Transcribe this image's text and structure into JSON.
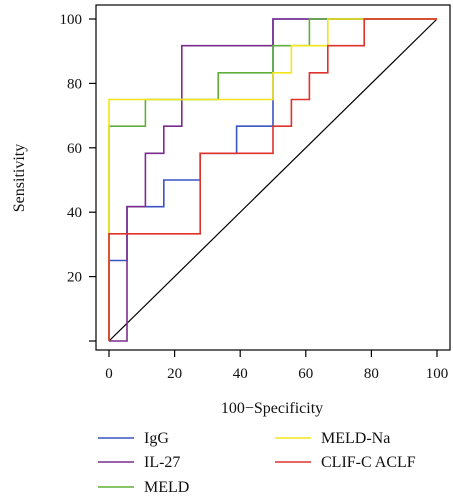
{
  "chart_data": {
    "type": "line",
    "title": "",
    "xlabel": "100−Specificity",
    "ylabel": "Sensitivity",
    "xlim": [
      0,
      100
    ],
    "ylim": [
      0,
      100
    ],
    "x_ticks": [
      "0",
      "20",
      "40",
      "60",
      "80",
      "100"
    ],
    "y_ticks": [
      "20",
      "40",
      "60",
      "80",
      "100"
    ],
    "grid": false,
    "legend_position": "bottom",
    "reference_line": {
      "from": [
        0,
        0
      ],
      "to": [
        100,
        100
      ],
      "color": "#000000"
    },
    "series": [
      {
        "name": "IgG",
        "color": "#3b54c4",
        "points": [
          [
            0,
            0
          ],
          [
            0,
            25
          ],
          [
            5.5,
            25
          ],
          [
            5.5,
            41.7
          ],
          [
            16.7,
            41.7
          ],
          [
            16.7,
            50
          ],
          [
            27.8,
            50
          ],
          [
            27.8,
            58.3
          ],
          [
            38.9,
            58.3
          ],
          [
            38.9,
            66.7
          ],
          [
            50,
            66.7
          ],
          [
            50,
            100
          ],
          [
            100,
            100
          ]
        ]
      },
      {
        "name": "IL-27",
        "color": "#7b2d8e",
        "points": [
          [
            0,
            0
          ],
          [
            5.5,
            0
          ],
          [
            5.5,
            41.7
          ],
          [
            11.1,
            41.7
          ],
          [
            11.1,
            58.3
          ],
          [
            16.7,
            58.3
          ],
          [
            16.7,
            66.7
          ],
          [
            22.2,
            66.7
          ],
          [
            22.2,
            91.7
          ],
          [
            50,
            91.7
          ],
          [
            50,
            100
          ],
          [
            100,
            100
          ]
        ]
      },
      {
        "name": "MELD",
        "color": "#5fb03a",
        "points": [
          [
            0,
            0
          ],
          [
            0,
            66.7
          ],
          [
            11.1,
            66.7
          ],
          [
            11.1,
            75
          ],
          [
            33.3,
            75
          ],
          [
            33.3,
            83.3
          ],
          [
            50,
            83.3
          ],
          [
            50,
            91.7
          ],
          [
            61.1,
            91.7
          ],
          [
            61.1,
            100
          ],
          [
            100,
            100
          ]
        ]
      },
      {
        "name": "MELD-Na",
        "color": "#f2e619",
        "points": [
          [
            0,
            0
          ],
          [
            0,
            75
          ],
          [
            50,
            75
          ],
          [
            50,
            83.3
          ],
          [
            55.6,
            83.3
          ],
          [
            55.6,
            91.7
          ],
          [
            66.7,
            91.7
          ],
          [
            66.7,
            100
          ],
          [
            100,
            100
          ]
        ]
      },
      {
        "name": "CLIF-C ACLF",
        "color": "#e0312b",
        "points": [
          [
            0,
            0
          ],
          [
            0,
            33.3
          ],
          [
            27.8,
            33.3
          ],
          [
            27.8,
            58.3
          ],
          [
            50,
            58.3
          ],
          [
            50,
            66.7
          ],
          [
            55.6,
            66.7
          ],
          [
            55.6,
            75
          ],
          [
            61.1,
            75
          ],
          [
            61.1,
            83.3
          ],
          [
            66.7,
            83.3
          ],
          [
            66.7,
            91.7
          ],
          [
            77.8,
            91.7
          ],
          [
            77.8,
            100
          ],
          [
            100,
            100
          ]
        ]
      }
    ]
  }
}
